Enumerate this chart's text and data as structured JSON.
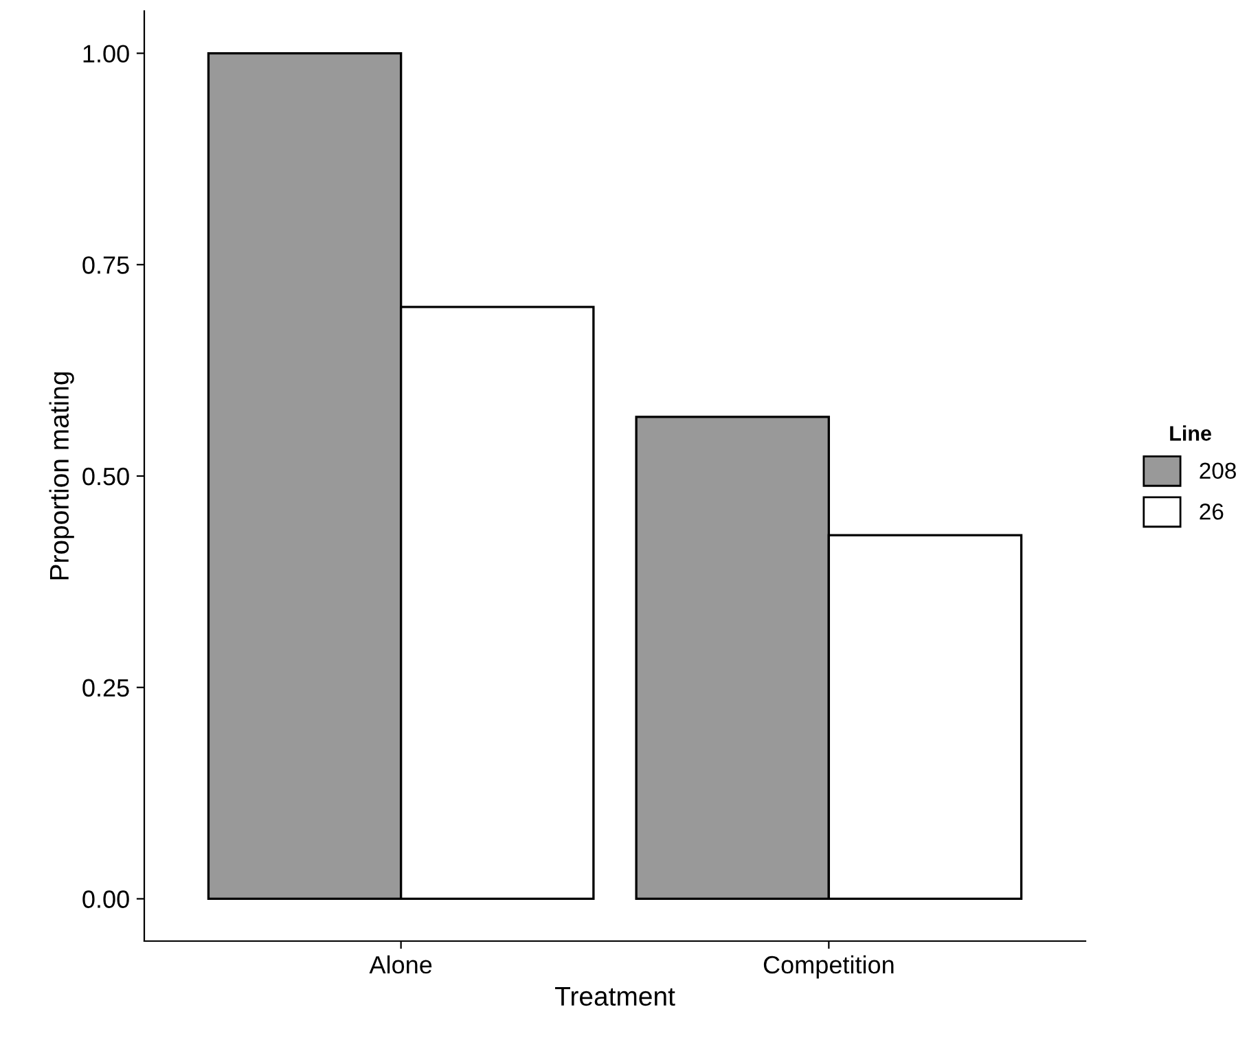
{
  "chart_data": {
    "type": "bar",
    "xlabel": "Treatment",
    "ylabel": "Proportion mating",
    "legend_title": "Line",
    "categories": [
      "Alone",
      "Competition"
    ],
    "series": [
      {
        "name": "208",
        "color": "#999999",
        "values": [
          1.0,
          0.57
        ]
      },
      {
        "name": "26",
        "color": "#ffffff",
        "values": [
          0.7,
          0.43
        ]
      }
    ],
    "ylim": [
      -0.05,
      1.05
    ],
    "yticks": [
      {
        "value": 0,
        "label": "0.00"
      },
      {
        "value": 0.25,
        "label": "0.25"
      },
      {
        "value": 0.5,
        "label": "0.50"
      },
      {
        "value": 0.75,
        "label": "0.75"
      },
      {
        "value": 1,
        "label": "1.00"
      }
    ],
    "grid": false,
    "legend": "right"
  }
}
